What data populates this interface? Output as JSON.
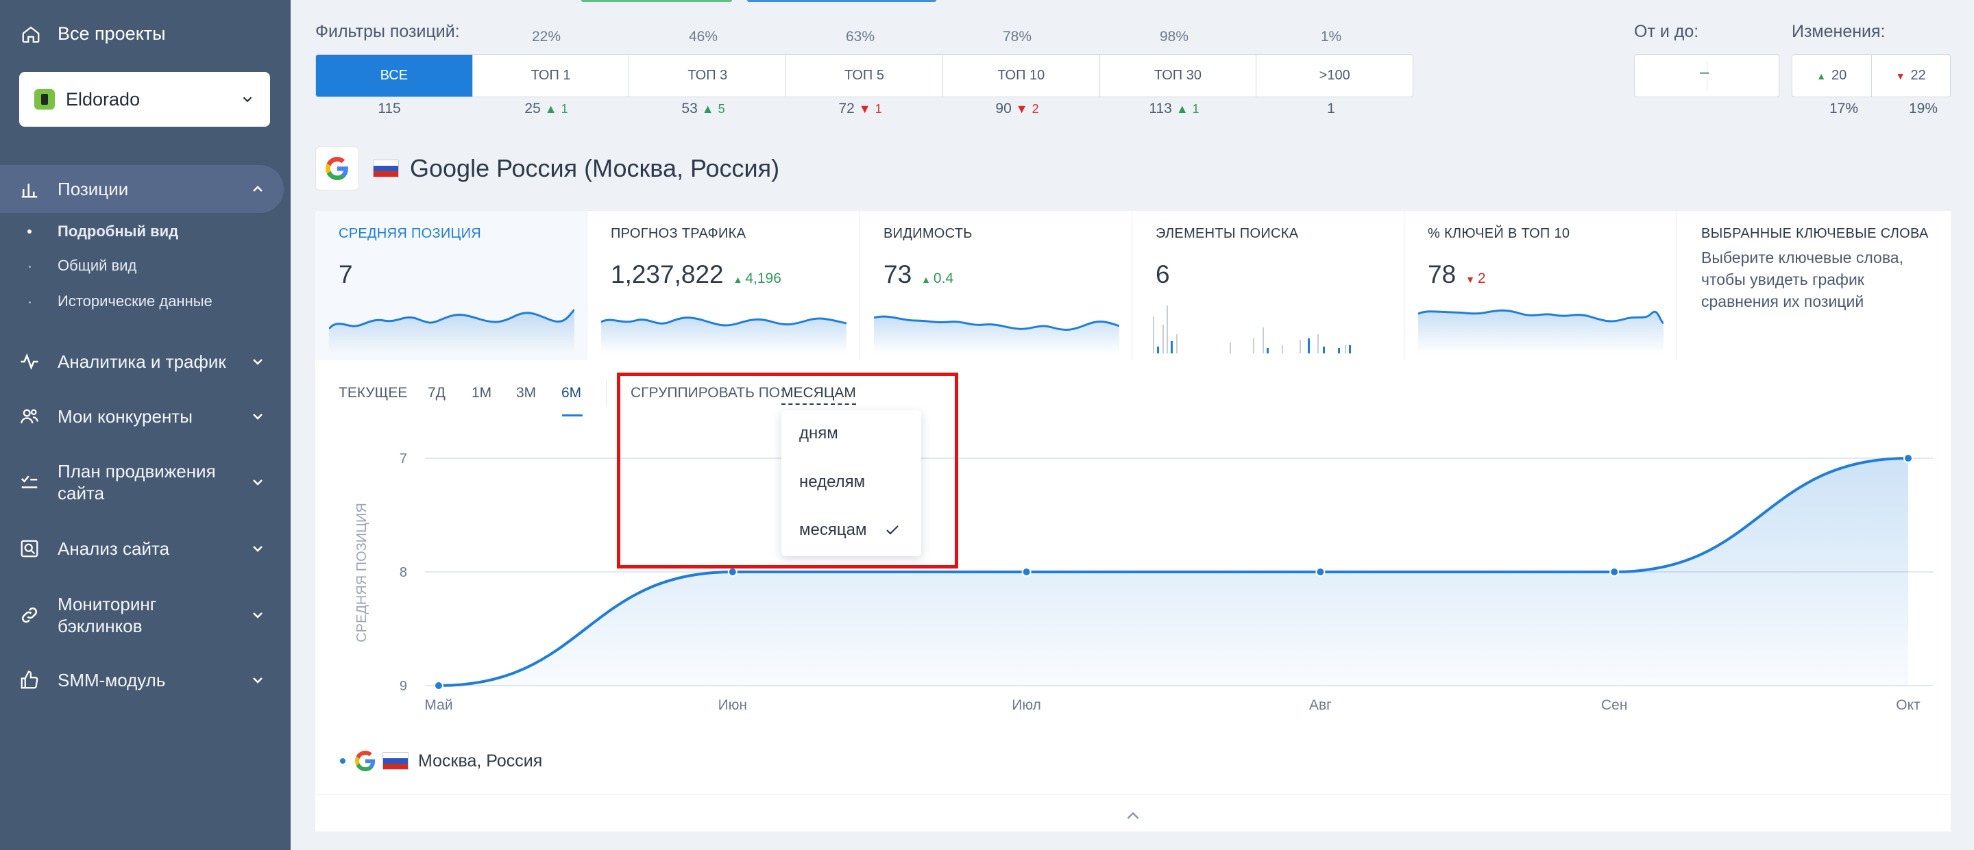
{
  "sidebar": {
    "all_projects": "Все проекты",
    "project": "Eldorado",
    "items": [
      {
        "label": "Позиции",
        "icon": "bar-chart-icon"
      },
      {
        "label": "Аналитика и трафик",
        "icon": "activity-icon"
      },
      {
        "label": "Мои конкуренты",
        "icon": "users-icon"
      },
      {
        "label": "План продвижения сайта",
        "icon": "checklist-icon"
      },
      {
        "label": "Анализ сайта",
        "icon": "site-search-icon"
      },
      {
        "label": "Мониторинг бэклинков",
        "icon": "link-icon"
      },
      {
        "label": "SMM-модуль",
        "icon": "thumbs-up-icon"
      }
    ],
    "subitems": [
      "Подробный вид",
      "Общий вид",
      "Исторические данные"
    ]
  },
  "filters": {
    "label": "Фильтры позиций:",
    "buttons": [
      {
        "label": "ВСЕ",
        "pct": "",
        "count": "115",
        "delta": "",
        "dir": ""
      },
      {
        "label": "ТОП 1",
        "pct": "22%",
        "count": "25",
        "delta": "1",
        "dir": "up"
      },
      {
        "label": "ТОП 3",
        "pct": "46%",
        "count": "53",
        "delta": "5",
        "dir": "up"
      },
      {
        "label": "ТОП 5",
        "pct": "63%",
        "count": "72",
        "delta": "1",
        "dir": "down"
      },
      {
        "label": "ТОП 10",
        "pct": "78%",
        "count": "90",
        "delta": "2",
        "dir": "down"
      },
      {
        "label": "ТОП 30",
        "pct": "98%",
        "count": "113",
        "delta": "1",
        "dir": "up"
      },
      {
        "label": ">100",
        "pct": "1%",
        "count": "1",
        "delta": "",
        "dir": ""
      }
    ],
    "range_label": "От и до:",
    "range_value": "–",
    "changes_label": "Изменения:",
    "changes_up": "20",
    "changes_down": "22",
    "changes_up_pct": "17%",
    "changes_down_pct": "19%"
  },
  "engine": {
    "title": "Google Россия (Москва, Россия)"
  },
  "cards": [
    {
      "title": "СРЕДНЯЯ ПОЗИЦИЯ",
      "value": "7",
      "delta": "",
      "dir": ""
    },
    {
      "title": "ПРОГНОЗ ТРАФИКА",
      "value": "1,237,822",
      "delta": "4,196",
      "dir": "up"
    },
    {
      "title": "ВИДИМОСТЬ",
      "value": "73",
      "delta": "0.4",
      "dir": "up"
    },
    {
      "title": "ЭЛЕМЕНТЫ ПОИСКА",
      "value": "6",
      "delta": "",
      "dir": ""
    },
    {
      "title": "% КЛЮЧЕЙ В ТОП 10",
      "value": "78",
      "delta": "2",
      "dir": "down"
    },
    {
      "title": "ВЫБРАННЫЕ КЛЮЧЕВЫЕ СЛОВА",
      "desc": "Выберите ключевые слова, чтобы увидеть график сравнения их позиций"
    }
  ],
  "tabs": [
    "ТЕКУЩЕЕ",
    "7Д",
    "1М",
    "3М",
    "6М"
  ],
  "active_tab": "6М",
  "grouping": {
    "label": "СГРУППИРОВАТЬ ПО:",
    "value": "МЕСЯЦАМ",
    "options": [
      "дням",
      "неделям",
      "месяцам"
    ],
    "selected": "месяцам"
  },
  "legend": {
    "label": "Москва, Россия"
  },
  "colors": {
    "accent": "#1e7ed9",
    "sidebar": "#475a73",
    "up": "#2e9a5b",
    "down": "#d92b2b",
    "highlight": "#e21212"
  },
  "chart_data": {
    "type": "line",
    "x": [
      "Май",
      "Июн",
      "Июл",
      "Авг",
      "Сен",
      "Окт"
    ],
    "y": [
      9,
      8,
      8,
      8,
      8,
      7
    ],
    "ylabel": "СРЕДНЯЯ ПОЗИЦИЯ",
    "ylim": [
      9,
      7
    ],
    "yticks": [
      "7",
      "8",
      "9"
    ],
    "inverted": true,
    "grid": true
  }
}
